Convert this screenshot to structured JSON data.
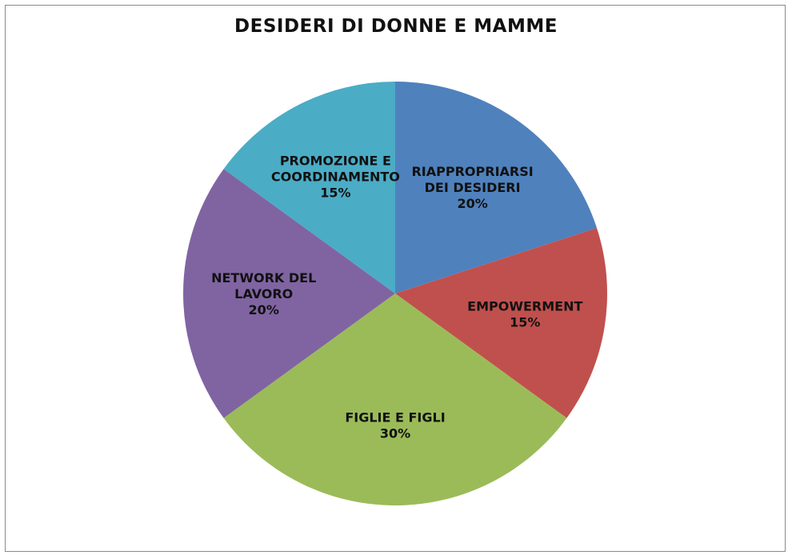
{
  "chart_data": {
    "type": "pie",
    "title": "DESIDERI DI DONNE E MAMME",
    "slices": [
      {
        "label_lines": [
          "RIAPPROPRIARSI",
          "DEI DESIDERI"
        ],
        "value": 20,
        "value_label": "20%",
        "color": "#4f81bd"
      },
      {
        "label_lines": [
          "EMPOWERMENT"
        ],
        "value": 15,
        "value_label": "15%",
        "color": "#c0504d"
      },
      {
        "label_lines": [
          "FIGLIE E FIGLI"
        ],
        "value": 30,
        "value_label": "30%",
        "color": "#9bbb59"
      },
      {
        "label_lines": [
          "NETWORK DEL",
          "LAVORO"
        ],
        "value": 20,
        "value_label": "20%",
        "color": "#8064a2"
      },
      {
        "label_lines": [
          "PROMOZIONE E",
          "COORDINAMENTO"
        ],
        "value": 15,
        "value_label": "15%",
        "color": "#4bacc6"
      }
    ],
    "start_angle": "top",
    "direction": "clockwise",
    "legend": "none"
  }
}
